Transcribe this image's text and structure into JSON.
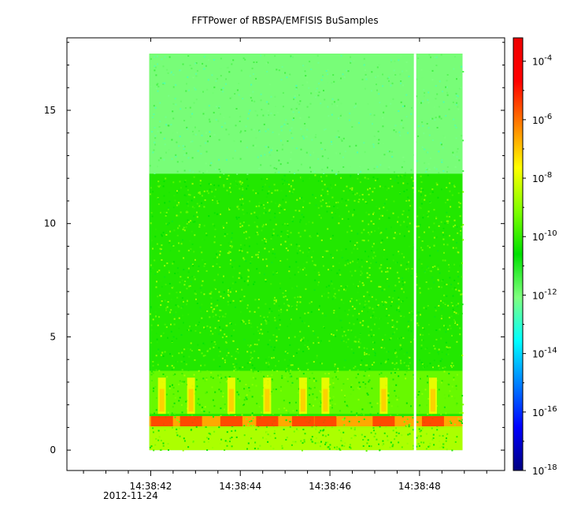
{
  "chart_data": {
    "type": "heatmap",
    "title": "FFTPower of RBSPA/EMFISIS  BuSamples",
    "xlabel": "",
    "ylabel": "",
    "x_ticks": [
      {
        "value": 42,
        "label": "14:38:42"
      },
      {
        "value": 44,
        "label": "14:38:44"
      },
      {
        "value": 46,
        "label": "14:38:46"
      },
      {
        "value": 48,
        "label": "14:38:48"
      }
    ],
    "x_date_label": "2012-11-24",
    "xlim": [
      40.13,
      49.9
    ],
    "data_x_range": [
      41.97,
      48.96
    ],
    "gap_x": 47.9,
    "y_ticks": [
      0,
      5,
      10,
      15
    ],
    "ylim": [
      -0.9,
      18.2
    ],
    "data_y_range": [
      0,
      17.5
    ],
    "colorbar": {
      "scale": "log",
      "range_exp": [
        -18,
        -3.2
      ],
      "tick_exponents": [
        -4,
        -6,
        -8,
        -10,
        -12,
        -14,
        -16,
        -18
      ],
      "tick_base": "10",
      "colors": [
        "#00007f",
        "#0000ff",
        "#007fff",
        "#00ffff",
        "#7fff7f",
        "#00e000",
        "#7fff00",
        "#ffff00",
        "#ff7f00",
        "#ff0000",
        "#ee0000"
      ]
    },
    "bands": [
      {
        "y": [
          12.2,
          17.5
        ],
        "log_power": -12.0,
        "note": "cyan-green"
      },
      {
        "y": [
          3.5,
          12.2
        ],
        "log_power": -10.2
      },
      {
        "y": [
          1.6,
          3.5
        ],
        "log_power": -9.4
      },
      {
        "y": [
          1.05,
          1.5
        ],
        "log_power": -7.0
      },
      {
        "y": [
          0,
          1.05
        ],
        "log_power": -8.6
      }
    ],
    "bursts_x": [
      42.25,
      42.9,
      43.8,
      44.6,
      45.4,
      45.9,
      47.2,
      48.3
    ]
  }
}
